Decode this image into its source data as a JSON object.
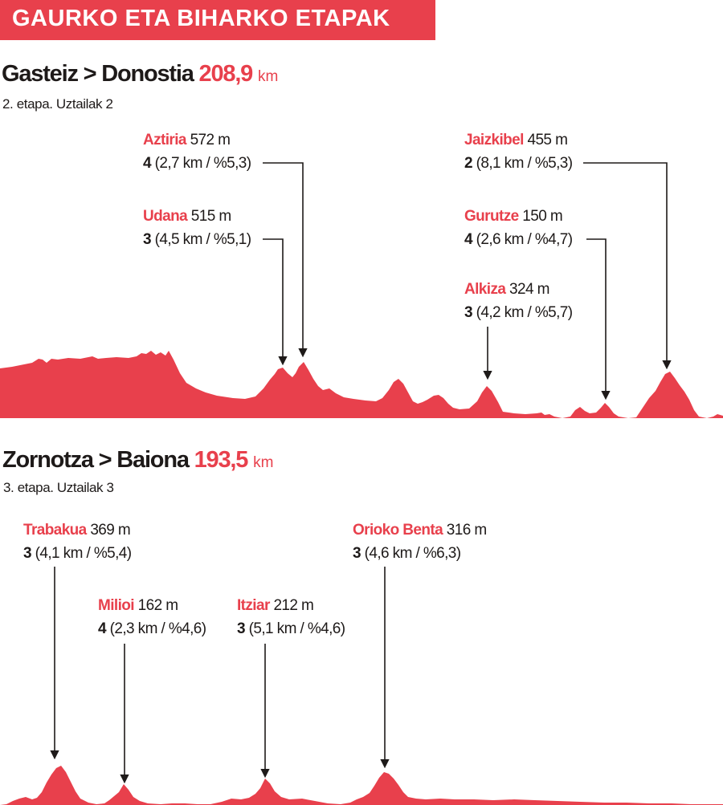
{
  "banner": {
    "title": "GAURKO ETA BIHARKO ETAPAK"
  },
  "colors": {
    "accent": "#e8404c",
    "text": "#1e1a19",
    "background": "#ffffff"
  },
  "stage2": {
    "route": "Gasteiz > Donostia",
    "distance": "208,9",
    "unit": "km",
    "subtitle": "2. etapa. Uztailak 2",
    "climbs": [
      {
        "name": "Aztiria",
        "altitude": "572 m",
        "category": "4",
        "details": "(2,7 km / %5,3)"
      },
      {
        "name": "Udana",
        "altitude": "515 m",
        "category": "3",
        "details": "(4,5 km / %5,1)"
      },
      {
        "name": "Jaizkibel",
        "altitude": "455 m",
        "category": "2",
        "details": "(8,1 km / %5,3)"
      },
      {
        "name": "Gurutze",
        "altitude": "150 m",
        "category": "4",
        "details": "(2,6 km / %4,7)"
      },
      {
        "name": "Alkiza",
        "altitude": "324 m",
        "category": "3",
        "details": "(4,2 km / %5,7)"
      }
    ]
  },
  "stage3": {
    "route": "Zornotza > Baiona",
    "distance": "193,5",
    "unit": "km",
    "subtitle": "3. etapa. Uztailak 3",
    "climbs": [
      {
        "name": "Trabakua",
        "altitude": "369 m",
        "category": "3",
        "details": "(4,1 km / %5,4)"
      },
      {
        "name": "Orioko Benta",
        "altitude": "316 m",
        "category": "3",
        "details": "(4,6 km / %6,3)"
      },
      {
        "name": "Milioi",
        "altitude": "162 m",
        "category": "4",
        "details": "(2,3 km / %4,6)"
      },
      {
        "name": "Itziar",
        "altitude": "212 m",
        "category": "3",
        "details": "(5,1 km / %4,6)"
      }
    ]
  }
}
